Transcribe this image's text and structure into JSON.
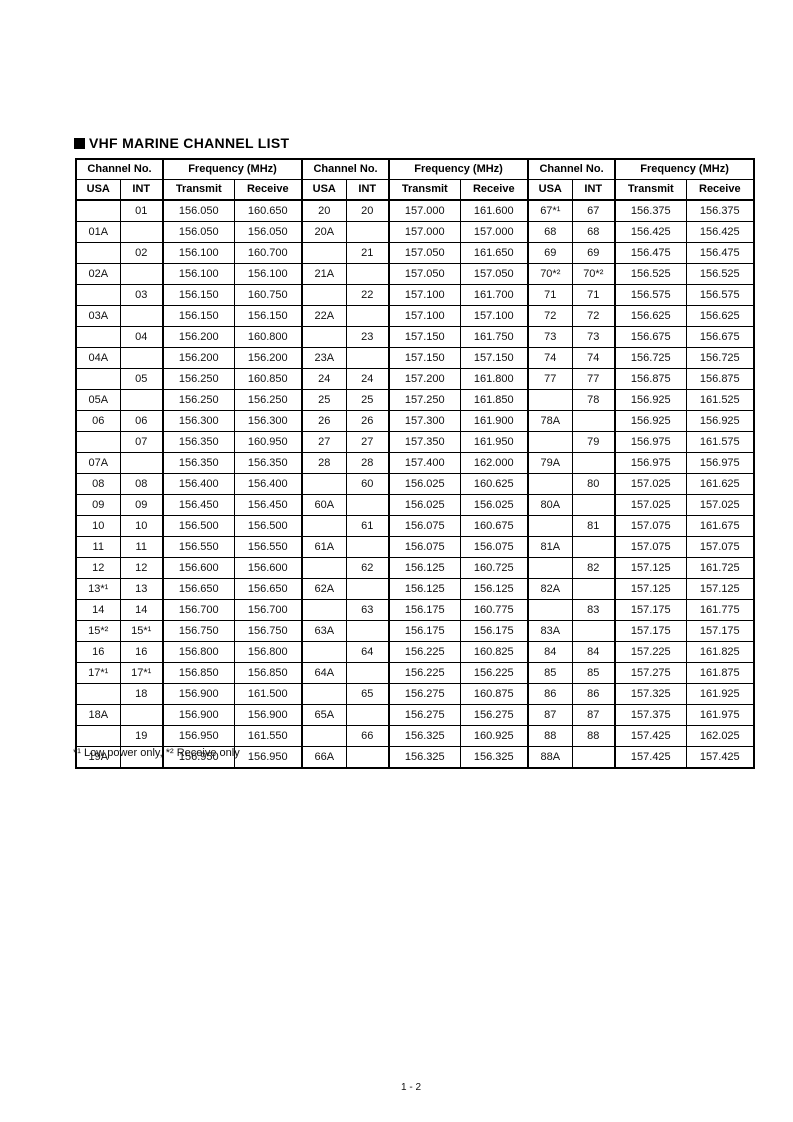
{
  "page": {
    "title": "VHF MARINE CHANNEL LIST",
    "footnote": "*¹ Low power only, *² Receive only",
    "page_number": "1 - 2"
  },
  "colors": {
    "text": "#000000",
    "border": "#000000",
    "background": "#ffffff"
  },
  "table": {
    "group_headers": [
      "Channel No.",
      "Frequency (MHz)"
    ],
    "column_headers": [
      "USA",
      "INT",
      "Transmit",
      "Receive"
    ],
    "group_count": 3,
    "rows": [
      [
        "",
        "01",
        "156.050",
        "160.650",
        "20",
        "20",
        "157.000",
        "161.600",
        "67*¹",
        "67",
        "156.375",
        "156.375"
      ],
      [
        "01A",
        "",
        "156.050",
        "156.050",
        "20A",
        "",
        "157.000",
        "157.000",
        "68",
        "68",
        "156.425",
        "156.425"
      ],
      [
        "",
        "02",
        "156.100",
        "160.700",
        "",
        "21",
        "157.050",
        "161.650",
        "69",
        "69",
        "156.475",
        "156.475"
      ],
      [
        "02A",
        "",
        "156.100",
        "156.100",
        "21A",
        "",
        "157.050",
        "157.050",
        "70*²",
        "70*²",
        "156.525",
        "156.525"
      ],
      [
        "",
        "03",
        "156.150",
        "160.750",
        "",
        "22",
        "157.100",
        "161.700",
        "71",
        "71",
        "156.575",
        "156.575"
      ],
      [
        "03A",
        "",
        "156.150",
        "156.150",
        "22A",
        "",
        "157.100",
        "157.100",
        "72",
        "72",
        "156.625",
        "156.625"
      ],
      [
        "",
        "04",
        "156.200",
        "160.800",
        "",
        "23",
        "157.150",
        "161.750",
        "73",
        "73",
        "156.675",
        "156.675"
      ],
      [
        "04A",
        "",
        "156.200",
        "156.200",
        "23A",
        "",
        "157.150",
        "157.150",
        "74",
        "74",
        "156.725",
        "156.725"
      ],
      [
        "",
        "05",
        "156.250",
        "160.850",
        "24",
        "24",
        "157.200",
        "161.800",
        "77",
        "77",
        "156.875",
        "156.875"
      ],
      [
        "05A",
        "",
        "156.250",
        "156.250",
        "25",
        "25",
        "157.250",
        "161.850",
        "",
        "78",
        "156.925",
        "161.525"
      ],
      [
        "06",
        "06",
        "156.300",
        "156.300",
        "26",
        "26",
        "157.300",
        "161.900",
        "78A",
        "",
        "156.925",
        "156.925"
      ],
      [
        "",
        "07",
        "156.350",
        "160.950",
        "27",
        "27",
        "157.350",
        "161.950",
        "",
        "79",
        "156.975",
        "161.575"
      ],
      [
        "07A",
        "",
        "156.350",
        "156.350",
        "28",
        "28",
        "157.400",
        "162.000",
        "79A",
        "",
        "156.975",
        "156.975"
      ],
      [
        "08",
        "08",
        "156.400",
        "156.400",
        "",
        "60",
        "156.025",
        "160.625",
        "",
        "80",
        "157.025",
        "161.625"
      ],
      [
        "09",
        "09",
        "156.450",
        "156.450",
        "60A",
        "",
        "156.025",
        "156.025",
        "80A",
        "",
        "157.025",
        "157.025"
      ],
      [
        "10",
        "10",
        "156.500",
        "156.500",
        "",
        "61",
        "156.075",
        "160.675",
        "",
        "81",
        "157.075",
        "161.675"
      ],
      [
        "11",
        "11",
        "156.550",
        "156.550",
        "61A",
        "",
        "156.075",
        "156.075",
        "81A",
        "",
        "157.075",
        "157.075"
      ],
      [
        "12",
        "12",
        "156.600",
        "156.600",
        "",
        "62",
        "156.125",
        "160.725",
        "",
        "82",
        "157.125",
        "161.725"
      ],
      [
        "13*¹",
        "13",
        "156.650",
        "156.650",
        "62A",
        "",
        "156.125",
        "156.125",
        "82A",
        "",
        "157.125",
        "157.125"
      ],
      [
        "14",
        "14",
        "156.700",
        "156.700",
        "",
        "63",
        "156.175",
        "160.775",
        "",
        "83",
        "157.175",
        "161.775"
      ],
      [
        "15*²",
        "15*¹",
        "156.750",
        "156.750",
        "63A",
        "",
        "156.175",
        "156.175",
        "83A",
        "",
        "157.175",
        "157.175"
      ],
      [
        "16",
        "16",
        "156.800",
        "156.800",
        "",
        "64",
        "156.225",
        "160.825",
        "84",
        "84",
        "157.225",
        "161.825"
      ],
      [
        "17*¹",
        "17*¹",
        "156.850",
        "156.850",
        "64A",
        "",
        "156.225",
        "156.225",
        "85",
        "85",
        "157.275",
        "161.875"
      ],
      [
        "",
        "18",
        "156.900",
        "161.500",
        "",
        "65",
        "156.275",
        "160.875",
        "86",
        "86",
        "157.325",
        "161.925"
      ],
      [
        "18A",
        "",
        "156.900",
        "156.900",
        "65A",
        "",
        "156.275",
        "156.275",
        "87",
        "87",
        "157.375",
        "161.975"
      ],
      [
        "",
        "19",
        "156.950",
        "161.550",
        "",
        "66",
        "156.325",
        "160.925",
        "88",
        "88",
        "157.425",
        "162.025"
      ],
      [
        "19A",
        "",
        "156.950",
        "156.950",
        "66A",
        "",
        "156.325",
        "156.325",
        "88A",
        "",
        "157.425",
        "157.425"
      ]
    ]
  }
}
